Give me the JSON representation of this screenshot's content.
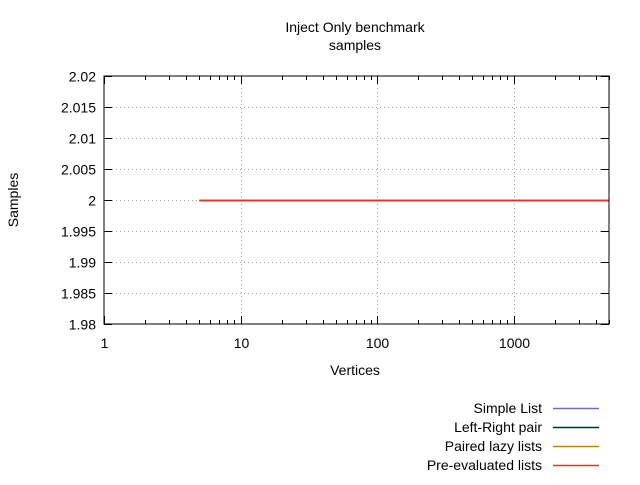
{
  "chart_data": {
    "type": "line",
    "title": "Inject Only benchmark",
    "subtitle": "samples",
    "xlabel": "Vertices",
    "ylabel": "Samples",
    "x_scale": "log",
    "xlim": [
      1,
      5000
    ],
    "ylim": [
      1.98,
      2.02
    ],
    "grid": true,
    "legend_position": "bottom-right",
    "x_ticks": [
      1,
      10,
      100,
      1000
    ],
    "x_tick_labels": [
      "1",
      "10",
      "100",
      "1000"
    ],
    "y_ticks": [
      1.98,
      1.985,
      1.99,
      1.995,
      2,
      2.005,
      2.01,
      2.015,
      2.02
    ],
    "y_tick_labels": [
      "1.98",
      "1.985",
      "1.99",
      "1.995",
      "2",
      "2.005",
      "2.01",
      "2.015",
      "2.02"
    ],
    "series": [
      {
        "name": "Simple List",
        "color": "#7b68c7",
        "x": [
          5,
          5000
        ],
        "y": [
          2,
          2
        ]
      },
      {
        "name": "Left-Right pair",
        "color": "#003333",
        "x": [
          5,
          5000
        ],
        "y": [
          2,
          2
        ]
      },
      {
        "name": "Paired lazy lists",
        "color": "#c08a00",
        "x": [
          5,
          5000
        ],
        "y": [
          2,
          2
        ]
      },
      {
        "name": "Pre-evaluated lists",
        "color": "#e0302a",
        "x": [
          5,
          5000
        ],
        "y": [
          2,
          2
        ]
      }
    ]
  }
}
